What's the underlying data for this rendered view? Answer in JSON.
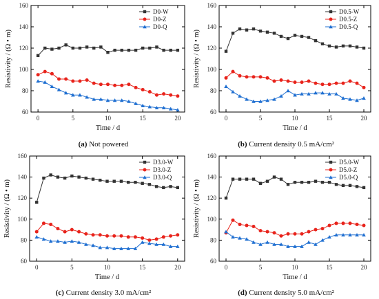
{
  "chart_data": [
    {
      "type": "line",
      "panel_letter": "(a)",
      "caption": "Not powered",
      "xlabel": "Time / d",
      "ylabel": "Resistivity / (Ω • m)",
      "xlim": [
        -1,
        21
      ],
      "ylim": [
        60,
        160
      ],
      "xticks": [
        0,
        5,
        10,
        15,
        20
      ],
      "yticks": [
        60,
        80,
        100,
        120,
        140,
        160
      ],
      "legend_position": "top-right",
      "x": [
        0,
        1,
        2,
        3,
        4,
        5,
        6,
        7,
        8,
        9,
        10,
        11,
        12,
        13,
        14,
        15,
        16,
        17,
        18,
        19,
        20
      ],
      "series": [
        {
          "name": "D0-W",
          "color": "#333333",
          "marker": "square",
          "values": [
            113,
            120,
            119,
            120,
            123,
            120,
            120,
            121,
            120,
            121,
            116,
            118,
            118,
            118,
            118,
            120,
            120,
            121,
            118,
            118,
            118
          ]
        },
        {
          "name": "D0-Z",
          "color": "#e8231b",
          "marker": "circle",
          "values": [
            95,
            98,
            96,
            91,
            91,
            89,
            89,
            90,
            87,
            86,
            86,
            85,
            85,
            86,
            83,
            81,
            79,
            76,
            77,
            76,
            75
          ]
        },
        {
          "name": "D0-Q",
          "color": "#1f6fd1",
          "marker": "triangle",
          "values": [
            89,
            88,
            84,
            81,
            78,
            76,
            76,
            74,
            72,
            72,
            71,
            71,
            71,
            70,
            68,
            66,
            65,
            64,
            64,
            63,
            62
          ]
        }
      ]
    },
    {
      "type": "line",
      "panel_letter": "(b)",
      "caption": "Current density 0.5 mA/cm²",
      "xlabel": "Time / d",
      "ylabel": "Resistivity / (Ω • m)",
      "xlim": [
        -1,
        21
      ],
      "ylim": [
        60,
        160
      ],
      "xticks": [
        0,
        5,
        10,
        15,
        20
      ],
      "yticks": [
        60,
        80,
        100,
        120,
        140,
        160
      ],
      "legend_position": "top-right",
      "x": [
        0,
        1,
        2,
        3,
        4,
        5,
        6,
        7,
        8,
        9,
        10,
        11,
        12,
        13,
        14,
        15,
        16,
        17,
        18,
        19,
        20
      ],
      "series": [
        {
          "name": "D0.5-W",
          "color": "#333333",
          "marker": "square",
          "values": [
            117,
            134,
            138,
            137,
            138,
            136,
            135,
            134,
            131,
            129,
            132,
            131,
            130,
            127,
            124,
            122,
            121,
            122,
            122,
            121,
            120
          ]
        },
        {
          "name": "D0.5-Z",
          "color": "#e8231b",
          "marker": "circle",
          "values": [
            92,
            98,
            94,
            93,
            93,
            93,
            92,
            89,
            90,
            89,
            88,
            88,
            89,
            87,
            86,
            86,
            87,
            87,
            89,
            87,
            83
          ]
        },
        {
          "name": "D0.5-Q",
          "color": "#1f6fd1",
          "marker": "triangle",
          "values": [
            84,
            79,
            75,
            72,
            70,
            70,
            71,
            72,
            75,
            80,
            76,
            77,
            77,
            78,
            78,
            77,
            77,
            73,
            72,
            71,
            73
          ]
        }
      ]
    },
    {
      "type": "line",
      "panel_letter": "(c)",
      "caption": "Current density 3.0 mA/cm²",
      "xlabel": "Time / d",
      "ylabel": "Resistivity / (Ω • m)",
      "xlim": [
        -1,
        21
      ],
      "ylim": [
        60,
        160
      ],
      "xticks": [
        0,
        5,
        10,
        15,
        20
      ],
      "yticks": [
        60,
        80,
        100,
        120,
        140,
        160
      ],
      "legend_position": "top-right",
      "x": [
        0,
        1,
        2,
        3,
        4,
        5,
        6,
        7,
        8,
        9,
        10,
        11,
        12,
        13,
        14,
        15,
        16,
        17,
        18,
        19,
        20
      ],
      "series": [
        {
          "name": "D3.0-W",
          "color": "#333333",
          "marker": "square",
          "values": [
            116,
            139,
            142,
            140,
            139,
            141,
            140,
            139,
            138,
            137,
            136,
            136,
            136,
            135,
            135,
            134,
            133,
            131,
            130,
            131,
            130
          ]
        },
        {
          "name": "D3.0-Z",
          "color": "#e8231b",
          "marker": "circle",
          "values": [
            88,
            96,
            95,
            91,
            88,
            90,
            88,
            86,
            85,
            85,
            84,
            84,
            84,
            83,
            83,
            82,
            80,
            81,
            83,
            84,
            85
          ]
        },
        {
          "name": "D3.0-Q",
          "color": "#1f6fd1",
          "marker": "triangle",
          "values": [
            83,
            81,
            79,
            79,
            78,
            79,
            78,
            76,
            75,
            73,
            73,
            72,
            72,
            72,
            72,
            78,
            77,
            76,
            76,
            74,
            74
          ]
        }
      ]
    },
    {
      "type": "line",
      "panel_letter": "(d)",
      "caption": "Current density 5.0 mA/cm²",
      "xlabel": "Time / d",
      "ylabel": "Resistivity / (Ω • m)",
      "xlim": [
        -1,
        21
      ],
      "ylim": [
        60,
        160
      ],
      "xticks": [
        0,
        5,
        10,
        15,
        20
      ],
      "yticks": [
        60,
        80,
        100,
        120,
        140,
        160
      ],
      "legend_position": "top-right",
      "x": [
        0,
        1,
        2,
        3,
        4,
        5,
        6,
        7,
        8,
        9,
        10,
        11,
        12,
        13,
        14,
        15,
        16,
        17,
        18,
        19,
        20
      ],
      "series": [
        {
          "name": "D5.0-W",
          "color": "#333333",
          "marker": "square",
          "values": [
            120,
            138,
            138,
            138,
            138,
            134,
            136,
            140,
            138,
            133,
            135,
            135,
            135,
            136,
            135,
            135,
            133,
            132,
            132,
            131,
            130
          ]
        },
        {
          "name": "D5.0-Z",
          "color": "#e8231b",
          "marker": "circle",
          "values": [
            87,
            99,
            95,
            94,
            93,
            89,
            88,
            87,
            84,
            86,
            86,
            86,
            88,
            90,
            91,
            94,
            96,
            96,
            96,
            95,
            94
          ]
        },
        {
          "name": "D5.0-Q",
          "color": "#1f6fd1",
          "marker": "triangle",
          "values": [
            88,
            83,
            82,
            81,
            78,
            76,
            78,
            76,
            76,
            74,
            74,
            74,
            78,
            76,
            80,
            83,
            85,
            85,
            85,
            85,
            85
          ]
        }
      ]
    }
  ]
}
